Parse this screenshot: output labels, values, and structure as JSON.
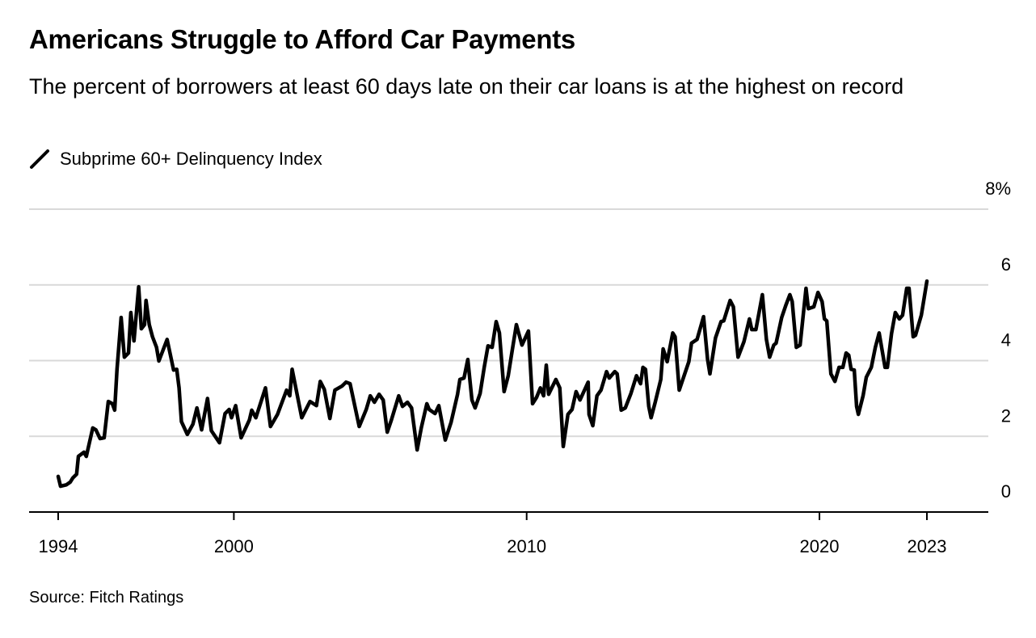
{
  "chart_data": {
    "type": "line",
    "title": "Americans Struggle to Afford Car Payments",
    "subtitle": "The percent of borrowers at least 60 days late on their car loans is at the highest on record",
    "source": "Source: Fitch Ratings",
    "legend": "top-left",
    "grid": true,
    "line_color": "#000000",
    "grid_color": "#d9d9d9",
    "xlim": [
      1994,
      2023.67
    ],
    "ylim": [
      0,
      8
    ],
    "yticks": [
      {
        "value": 0,
        "label": "0"
      },
      {
        "value": 2,
        "label": "2"
      },
      {
        "value": 4,
        "label": "4"
      },
      {
        "value": 6,
        "label": "6"
      },
      {
        "value": 8,
        "label": "8%"
      }
    ],
    "xticks": [
      {
        "value": 1994,
        "label": "1994"
      },
      {
        "value": 2000,
        "label": "2000"
      },
      {
        "value": 2010,
        "label": "2010"
      },
      {
        "value": 2020,
        "label": "2020"
      },
      {
        "value": 2023.67,
        "label": "2023"
      }
    ],
    "series": [
      {
        "name": "Subprime 60+ Delinquency Index",
        "points": [
          [
            1994.0,
            0.94
          ],
          [
            1994.08,
            0.68
          ],
          [
            1994.28,
            0.72
          ],
          [
            1994.41,
            0.79
          ],
          [
            1994.5,
            0.9
          ],
          [
            1994.63,
            1.0
          ],
          [
            1994.69,
            1.47
          ],
          [
            1994.88,
            1.58
          ],
          [
            1994.96,
            1.47
          ],
          [
            1995.18,
            2.22
          ],
          [
            1995.29,
            2.17
          ],
          [
            1995.43,
            1.94
          ],
          [
            1995.57,
            1.96
          ],
          [
            1995.71,
            2.92
          ],
          [
            1995.85,
            2.86
          ],
          [
            1995.93,
            2.69
          ],
          [
            1996.01,
            3.77
          ],
          [
            1996.15,
            5.14
          ],
          [
            1996.26,
            4.09
          ],
          [
            1996.4,
            4.2
          ],
          [
            1996.48,
            5.27
          ],
          [
            1996.59,
            4.52
          ],
          [
            1996.75,
            5.95
          ],
          [
            1996.84,
            4.84
          ],
          [
            1996.95,
            4.95
          ],
          [
            1997.0,
            5.59
          ],
          [
            1997.11,
            4.95
          ],
          [
            1997.22,
            4.63
          ],
          [
            1997.36,
            4.35
          ],
          [
            1997.44,
            3.99
          ],
          [
            1997.72,
            4.56
          ],
          [
            1997.94,
            3.75
          ],
          [
            1998.05,
            3.77
          ],
          [
            1998.13,
            3.28
          ],
          [
            1998.21,
            2.39
          ],
          [
            1998.41,
            2.05
          ],
          [
            1998.6,
            2.32
          ],
          [
            1998.74,
            2.75
          ],
          [
            1998.82,
            2.47
          ],
          [
            1998.9,
            2.17
          ],
          [
            1999.1,
            3.0
          ],
          [
            1999.23,
            2.15
          ],
          [
            1999.51,
            1.83
          ],
          [
            1999.7,
            2.6
          ],
          [
            1999.84,
            2.71
          ],
          [
            1999.92,
            2.49
          ],
          [
            2000.06,
            2.81
          ],
          [
            2000.25,
            1.96
          ],
          [
            2000.53,
            2.43
          ],
          [
            2000.61,
            2.69
          ],
          [
            2000.75,
            2.49
          ],
          [
            2001.08,
            3.28
          ],
          [
            2001.25,
            2.26
          ],
          [
            2001.49,
            2.58
          ],
          [
            2001.8,
            3.22
          ],
          [
            2001.91,
            3.07
          ],
          [
            2001.99,
            3.77
          ],
          [
            2002.32,
            2.49
          ],
          [
            2002.6,
            2.92
          ],
          [
            2002.82,
            2.81
          ],
          [
            2002.95,
            3.45
          ],
          [
            2003.09,
            3.24
          ],
          [
            2003.28,
            2.47
          ],
          [
            2003.45,
            3.22
          ],
          [
            2003.7,
            3.33
          ],
          [
            2003.83,
            3.43
          ],
          [
            2003.97,
            3.39
          ],
          [
            2004.28,
            2.26
          ],
          [
            2004.52,
            2.71
          ],
          [
            2004.66,
            3.07
          ],
          [
            2004.8,
            2.9
          ],
          [
            2004.96,
            3.11
          ],
          [
            2005.1,
            2.96
          ],
          [
            2005.24,
            2.11
          ],
          [
            2005.38,
            2.43
          ],
          [
            2005.63,
            3.07
          ],
          [
            2005.76,
            2.79
          ],
          [
            2005.93,
            2.9
          ],
          [
            2006.07,
            2.75
          ],
          [
            2006.26,
            1.64
          ],
          [
            2006.4,
            2.22
          ],
          [
            2006.59,
            2.86
          ],
          [
            2006.67,
            2.71
          ],
          [
            2006.87,
            2.6
          ],
          [
            2007.0,
            2.81
          ],
          [
            2007.22,
            1.9
          ],
          [
            2007.42,
            2.37
          ],
          [
            2007.64,
            3.11
          ],
          [
            2007.72,
            3.5
          ],
          [
            2007.86,
            3.54
          ],
          [
            2007.99,
            4.03
          ],
          [
            2008.13,
            2.96
          ],
          [
            2008.24,
            2.75
          ],
          [
            2008.41,
            3.13
          ],
          [
            2008.55,
            3.82
          ],
          [
            2008.68,
            4.39
          ],
          [
            2008.82,
            4.35
          ],
          [
            2008.96,
            5.03
          ],
          [
            2009.07,
            4.73
          ],
          [
            2009.23,
            3.18
          ],
          [
            2009.37,
            3.6
          ],
          [
            2009.51,
            4.29
          ],
          [
            2009.65,
            4.95
          ],
          [
            2009.84,
            4.41
          ],
          [
            2010.06,
            4.78
          ],
          [
            2010.2,
            2.86
          ],
          [
            2010.34,
            3.03
          ],
          [
            2010.47,
            3.28
          ],
          [
            2010.58,
            3.07
          ],
          [
            2010.67,
            3.88
          ],
          [
            2010.75,
            3.11
          ],
          [
            2011.0,
            3.5
          ],
          [
            2011.13,
            3.28
          ],
          [
            2011.25,
            1.73
          ],
          [
            2011.41,
            2.58
          ],
          [
            2011.55,
            2.71
          ],
          [
            2011.69,
            3.18
          ],
          [
            2011.82,
            2.96
          ],
          [
            2012.1,
            3.43
          ],
          [
            2012.13,
            2.58
          ],
          [
            2012.26,
            2.28
          ],
          [
            2012.4,
            3.07
          ],
          [
            2012.54,
            3.22
          ],
          [
            2012.73,
            3.71
          ],
          [
            2012.82,
            3.54
          ],
          [
            2013.01,
            3.71
          ],
          [
            2013.09,
            3.65
          ],
          [
            2013.23,
            2.69
          ],
          [
            2013.37,
            2.75
          ],
          [
            2013.56,
            3.13
          ],
          [
            2013.75,
            3.6
          ],
          [
            2013.89,
            3.39
          ],
          [
            2013.97,
            3.82
          ],
          [
            2014.06,
            3.77
          ],
          [
            2014.17,
            2.79
          ],
          [
            2014.25,
            2.49
          ],
          [
            2014.39,
            2.9
          ],
          [
            2014.58,
            3.5
          ],
          [
            2014.66,
            4.31
          ],
          [
            2014.8,
            3.97
          ],
          [
            2014.99,
            4.73
          ],
          [
            2015.07,
            4.63
          ],
          [
            2015.21,
            3.22
          ],
          [
            2015.54,
            3.97
          ],
          [
            2015.63,
            4.46
          ],
          [
            2015.82,
            4.56
          ],
          [
            2016.04,
            5.16
          ],
          [
            2016.18,
            4.03
          ],
          [
            2016.26,
            3.65
          ],
          [
            2016.45,
            4.6
          ],
          [
            2016.64,
            5.03
          ],
          [
            2016.73,
            5.05
          ],
          [
            2016.95,
            5.59
          ],
          [
            2017.06,
            5.42
          ],
          [
            2017.22,
            4.09
          ],
          [
            2017.42,
            4.5
          ],
          [
            2017.61,
            5.1
          ],
          [
            2017.69,
            4.82
          ],
          [
            2017.83,
            4.82
          ],
          [
            2018.05,
            5.74
          ],
          [
            2018.19,
            4.56
          ],
          [
            2018.3,
            4.09
          ],
          [
            2018.44,
            4.41
          ],
          [
            2018.52,
            4.46
          ],
          [
            2018.71,
            5.14
          ],
          [
            2018.85,
            5.46
          ],
          [
            2018.99,
            5.74
          ],
          [
            2019.07,
            5.56
          ],
          [
            2019.21,
            4.35
          ],
          [
            2019.34,
            4.41
          ],
          [
            2019.54,
            5.91
          ],
          [
            2019.62,
            5.37
          ],
          [
            2019.81,
            5.42
          ],
          [
            2019.95,
            5.8
          ],
          [
            2020.09,
            5.56
          ],
          [
            2020.17,
            5.1
          ],
          [
            2020.25,
            5.05
          ],
          [
            2020.39,
            3.65
          ],
          [
            2020.53,
            3.45
          ],
          [
            2020.67,
            3.82
          ],
          [
            2020.8,
            3.82
          ],
          [
            2020.91,
            4.2
          ],
          [
            2021.0,
            4.14
          ],
          [
            2021.08,
            3.77
          ],
          [
            2021.19,
            3.75
          ],
          [
            2021.27,
            2.79
          ],
          [
            2021.33,
            2.58
          ],
          [
            2021.49,
            3.07
          ],
          [
            2021.6,
            3.56
          ],
          [
            2021.77,
            3.82
          ],
          [
            2021.91,
            4.35
          ],
          [
            2022.04,
            4.73
          ],
          [
            2022.24,
            3.82
          ],
          [
            2022.32,
            3.82
          ],
          [
            2022.46,
            4.71
          ],
          [
            2022.59,
            5.27
          ],
          [
            2022.73,
            5.1
          ],
          [
            2022.84,
            5.2
          ],
          [
            2022.98,
            5.91
          ],
          [
            2023.06,
            5.91
          ],
          [
            2023.2,
            4.63
          ],
          [
            2023.28,
            4.67
          ],
          [
            2023.48,
            5.2
          ],
          [
            2023.67,
            6.1
          ]
        ]
      }
    ]
  }
}
